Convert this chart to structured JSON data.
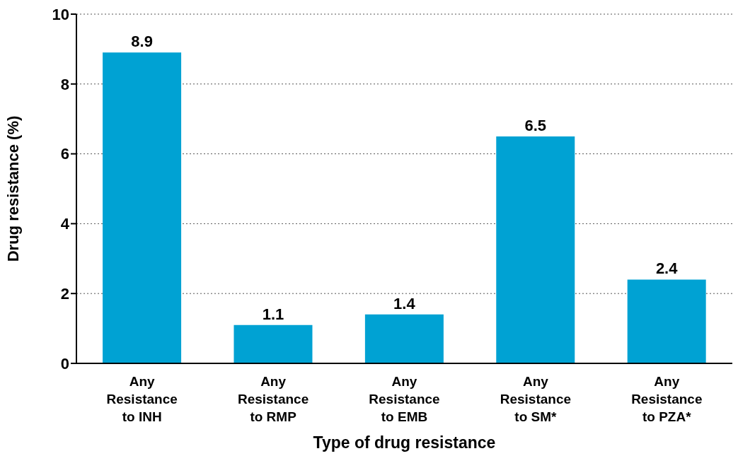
{
  "chart_data": {
    "type": "bar",
    "xlabel": "Type of drug resistance",
    "ylabel": "Drug resistance (%)",
    "categories": [
      "Any Resistance to INH",
      "Any Resistance to RMP",
      "Any Resistance to EMB",
      "Any Resistance to SM*",
      "Any Resistance to PZA*"
    ],
    "values": [
      8.9,
      1.1,
      1.4,
      6.5,
      2.4
    ],
    "color": "#00a2d3",
    "ylim": [
      0,
      10
    ],
    "yticks": [
      0,
      2,
      4,
      6,
      8,
      10
    ],
    "grid": "y",
    "data_labels": true
  }
}
